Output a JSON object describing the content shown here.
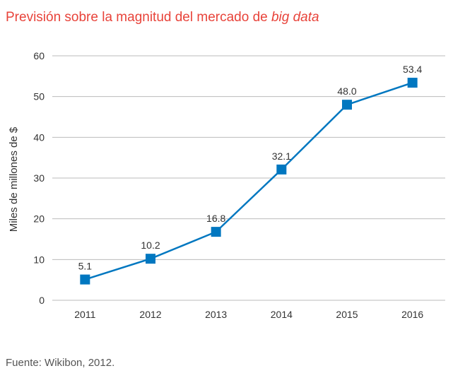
{
  "title": {
    "main": "Previsión sobre la magnitud del mercado de ",
    "italic": "big data"
  },
  "source": "Fuente: Wikibon, 2012.",
  "chart_data": {
    "type": "line",
    "categories": [
      "2011",
      "2012",
      "2013",
      "2014",
      "2015",
      "2016"
    ],
    "series": [
      {
        "values": [
          5.1,
          10.2,
          16.8,
          32.1,
          48.0,
          53.4
        ]
      }
    ],
    "data_labels": [
      "5.1",
      "10.2",
      "16.8",
      "32.1",
      "48.0",
      "53.4"
    ],
    "ylabel": "Miles de millones de $",
    "xlabel": "",
    "ylim": [
      0,
      60
    ],
    "yticks": [
      0,
      10,
      20,
      30,
      40,
      50,
      60
    ],
    "grid": true,
    "marker": "square",
    "colors": {
      "line": "#0077c0",
      "marker": "#0077c0",
      "grid": "#bbbbbb",
      "title": "#e8433a"
    }
  }
}
